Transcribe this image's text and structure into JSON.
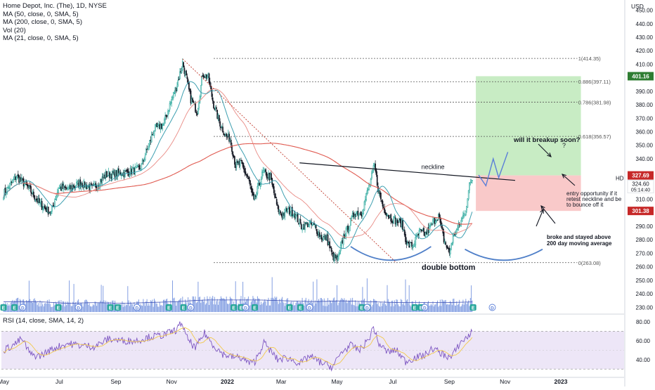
{
  "legend": {
    "title": "Home Depot, Inc. (The), 1D, NYSE",
    "ma50": "MA (50, close, 0, SMA, 5)",
    "ma200": "MA (200, close, 0, SMA, 5)",
    "vol": "Vol (20)",
    "ma21": "MA (21, close, 0, SMA, 5)"
  },
  "currency": "USD",
  "rsi_legend": "RSI (14, close, SMA, 14, 2)",
  "colors": {
    "up": "#26a69a",
    "down": "#131722",
    "ma50": "#3d9fb0",
    "ma200": "#e05a50",
    "volume": "#5b7fd8",
    "rsi": "#7e57c2",
    "rsi_sma": "#f2c94c",
    "green_zone": "#c8ecc4",
    "red_zone": "#f9c9c9",
    "arc": "#4f7fc8",
    "projection": "#5b7fd8"
  },
  "chart_data": {
    "type": "candlestick",
    "symbol": "HD",
    "price_axis": {
      "ticks": [
        230,
        240,
        250,
        260,
        270,
        280,
        290,
        300,
        310,
        320,
        330,
        340,
        350,
        360,
        370,
        380,
        390,
        400,
        410,
        420,
        430,
        440,
        450
      ],
      "range": [
        226,
        455
      ]
    },
    "rsi_axis": {
      "ticks": [
        40.0,
        60.0,
        80.0
      ],
      "range": [
        22,
        86
      ],
      "band": [
        30,
        70
      ]
    },
    "x_axis": {
      "labels": [
        "May",
        "Jul",
        "Sep",
        "Nov",
        "2022",
        "Mar",
        "May",
        "Jul",
        "Sep",
        "Nov",
        "2023"
      ],
      "label_days": [
        0,
        61,
        123,
        184,
        245,
        304,
        365,
        426,
        488,
        549,
        610
      ]
    },
    "price_anchors_close": [
      [
        0,
        314
      ],
      [
        14,
        327
      ],
      [
        22,
        322
      ],
      [
        30,
        316
      ],
      [
        40,
        306
      ],
      [
        52,
        300
      ],
      [
        60,
        318
      ],
      [
        72,
        318
      ],
      [
        84,
        322
      ],
      [
        98,
        318
      ],
      [
        112,
        328
      ],
      [
        124,
        329
      ],
      [
        136,
        330
      ],
      [
        150,
        333
      ],
      [
        165,
        362
      ],
      [
        175,
        365
      ],
      [
        182,
        380
      ],
      [
        190,
        395
      ],
      [
        196,
        411
      ],
      [
        200,
        400
      ],
      [
        205,
        384
      ],
      [
        212,
        375
      ],
      [
        218,
        403
      ],
      [
        224,
        400
      ],
      [
        230,
        380
      ],
      [
        236,
        368
      ],
      [
        243,
        357
      ],
      [
        248,
        355
      ],
      [
        254,
        335
      ],
      [
        260,
        336
      ],
      [
        268,
        325
      ],
      [
        274,
        308
      ],
      [
        284,
        330
      ],
      [
        292,
        326
      ],
      [
        300,
        303
      ],
      [
        305,
        298
      ],
      [
        310,
        302
      ],
      [
        318,
        300
      ],
      [
        326,
        290
      ],
      [
        334,
        292
      ],
      [
        340,
        290
      ],
      [
        348,
        282
      ],
      [
        354,
        281
      ],
      [
        360,
        268
      ],
      [
        366,
        265
      ],
      [
        372,
        282
      ],
      [
        378,
        290
      ],
      [
        384,
        300
      ],
      [
        392,
        300
      ],
      [
        398,
        315
      ],
      [
        402,
        324
      ],
      [
        406,
        335
      ],
      [
        410,
        318
      ],
      [
        416,
        303
      ],
      [
        424,
        296
      ],
      [
        430,
        294
      ],
      [
        436,
        292
      ],
      [
        442,
        276
      ],
      [
        448,
        276
      ],
      [
        456,
        286
      ],
      [
        462,
        284
      ],
      [
        470,
        293
      ],
      [
        476,
        298
      ],
      [
        482,
        280
      ],
      [
        488,
        270
      ],
      [
        492,
        282
      ],
      [
        500,
        292
      ],
      [
        506,
        303
      ],
      [
        510,
        320
      ],
      [
        513,
        325
      ]
    ],
    "volume_anchors_M": [
      [
        0,
        6
      ],
      [
        30,
        6
      ],
      [
        60,
        5
      ],
      [
        90,
        5.5
      ],
      [
        120,
        5
      ],
      [
        150,
        5.5
      ],
      [
        180,
        6
      ],
      [
        210,
        7
      ],
      [
        240,
        7
      ],
      [
        270,
        7
      ],
      [
        300,
        6.5
      ],
      [
        330,
        6
      ],
      [
        360,
        6.5
      ],
      [
        390,
        6
      ],
      [
        420,
        5.5
      ],
      [
        450,
        5.5
      ],
      [
        480,
        5.5
      ],
      [
        513,
        6
      ]
    ],
    "volume_axis": {
      "range_M": [
        0,
        30
      ]
    },
    "rsi_anchors": [
      [
        0,
        50
      ],
      [
        10,
        55
      ],
      [
        20,
        62
      ],
      [
        30,
        45
      ],
      [
        40,
        44
      ],
      [
        55,
        52
      ],
      [
        70,
        57
      ],
      [
        85,
        55
      ],
      [
        100,
        54
      ],
      [
        115,
        62
      ],
      [
        130,
        60
      ],
      [
        145,
        60
      ],
      [
        160,
        64
      ],
      [
        175,
        66
      ],
      [
        190,
        72
      ],
      [
        195,
        80
      ],
      [
        200,
        64
      ],
      [
        210,
        52
      ],
      [
        220,
        68
      ],
      [
        230,
        55
      ],
      [
        240,
        46
      ],
      [
        250,
        43
      ],
      [
        260,
        42
      ],
      [
        270,
        36
      ],
      [
        275,
        38
      ],
      [
        285,
        58
      ],
      [
        300,
        40
      ],
      [
        310,
        42
      ],
      [
        325,
        36
      ],
      [
        335,
        44
      ],
      [
        345,
        38
      ],
      [
        360,
        32
      ],
      [
        370,
        48
      ],
      [
        380,
        55
      ],
      [
        390,
        50
      ],
      [
        400,
        62
      ],
      [
        405,
        75
      ],
      [
        410,
        58
      ],
      [
        420,
        48
      ],
      [
        430,
        50
      ],
      [
        440,
        38
      ],
      [
        450,
        42
      ],
      [
        460,
        44
      ],
      [
        470,
        52
      ],
      [
        480,
        46
      ],
      [
        490,
        42
      ],
      [
        500,
        58
      ],
      [
        510,
        66
      ],
      [
        513,
        70
      ]
    ],
    "fibonacci": [
      {
        "ratio": "1",
        "price": 414.35
      },
      {
        "ratio": "0.886",
        "price": 397.11
      },
      {
        "ratio": "0.786",
        "price": 381.98
      },
      {
        "ratio": "0.618",
        "price": 356.57
      },
      {
        "ratio": "0",
        "price": 263.08
      }
    ],
    "neckline": {
      "label": "neckline",
      "from": [
        324,
        337
      ],
      "to": [
        560,
        324
      ]
    },
    "trade": {
      "entry": 327.69,
      "target": 401.16,
      "stop": 301.38,
      "current": 324.6,
      "countdown": "05:14:40"
    },
    "projection_path": [
      [
        520,
        328
      ],
      [
        528,
        320
      ],
      [
        536,
        340
      ],
      [
        542,
        326
      ],
      [
        552,
        345
      ]
    ],
    "earnings_days": [
      0,
      12,
      60,
      117,
      125,
      181,
      197,
      252,
      260,
      275,
      313,
      325,
      392,
      398,
      450,
      457,
      514
    ],
    "dividend_days": [
      21,
      82,
      146,
      205,
      265,
      335,
      398,
      461,
      535
    ],
    "annotations": [
      {
        "id": "a1",
        "text": "will it breakup soon?"
      },
      {
        "id": "a2",
        "text": "?"
      },
      {
        "id": "a3",
        "text": "entry opportunity if it"
      },
      {
        "id": "a4",
        "text": "retest neckline and be"
      },
      {
        "id": "a5",
        "text": "to bounce off it"
      },
      {
        "id": "a6",
        "text": "broke and stayed above"
      },
      {
        "id": "a7",
        "text": "200 day moving average"
      },
      {
        "id": "a8",
        "text": "double bottom"
      }
    ],
    "rsi_ticks_text": [
      "40.00",
      "60.00",
      "80.00"
    ],
    "price_tick_text": [
      "230.00",
      "240.00",
      "250.00",
      "260.00",
      "270.00",
      "280.00",
      "290.00",
      "300.00",
      "310.00",
      "320.00",
      "330.00",
      "340.00",
      "350.00",
      "360.00",
      "370.00",
      "380.00",
      "390.00",
      "400.00",
      "410.00",
      "420.00",
      "430.00",
      "440.00",
      "450.00"
    ],
    "badges": {
      "target": "401.16",
      "entry": "327.69",
      "current": "324.60",
      "stop": "301.38",
      "e_marker": "E",
      "d_marker": "D"
    }
  }
}
